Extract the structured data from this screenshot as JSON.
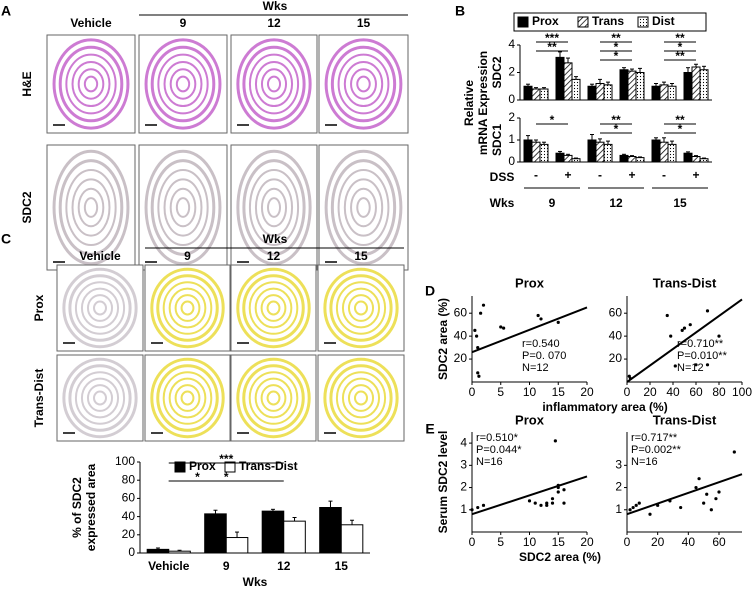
{
  "panels": {
    "A": {
      "label": "A",
      "group_label": "Wks",
      "columns": [
        "Vehicle",
        "9",
        "12",
        "15"
      ],
      "rows": [
        "H&E",
        "SDC2"
      ]
    },
    "B": {
      "label": "B"
    },
    "C": {
      "label": "C",
      "group_label": "Wks",
      "columns": [
        "Vehicle",
        "9",
        "12",
        "15"
      ],
      "rows": [
        "Prox",
        "Trans-Dist"
      ]
    },
    "D": {
      "label": "D"
    },
    "E": {
      "label": "E"
    }
  },
  "chart_data": [
    {
      "type": "bar",
      "title": "SDC2",
      "ylabel": [
        "Relative",
        "mRNA Expression"
      ],
      "series": [
        {
          "name": "Prox",
          "color": "#000000",
          "values": [
            1.0,
            3.1,
            1.0,
            2.2,
            1.0,
            2.0
          ],
          "errors": [
            0.15,
            0.4,
            0.15,
            0.15,
            0.2,
            0.35
          ]
        },
        {
          "name": "Trans",
          "color": "#000000",
          "pattern": "hatch",
          "values": [
            0.8,
            2.7,
            1.2,
            2.1,
            1.1,
            2.4
          ],
          "errors": [
            0.1,
            0.35,
            0.3,
            0.15,
            0.2,
            0.2
          ]
        },
        {
          "name": "Dist",
          "color": "#000000",
          "pattern": "dots",
          "values": [
            0.8,
            1.5,
            1.1,
            2.0,
            1.0,
            2.2
          ],
          "errors": [
            0.1,
            0.2,
            0.2,
            0.3,
            0.2,
            0.25
          ]
        }
      ],
      "ylim": [
        0,
        4
      ],
      "yticks": [
        0,
        2,
        4
      ],
      "legend": "top",
      "annotations": [
        "***",
        "**",
        "**",
        "*",
        "*",
        "**",
        "*",
        "**"
      ]
    },
    {
      "type": "bar",
      "title": "SDC1",
      "categories": [
        "-",
        "+",
        "-",
        "+",
        "-",
        "+"
      ],
      "category_row_label": "DSS",
      "groups": [
        "9",
        "12",
        "15"
      ],
      "group_row_label": "Wks",
      "series": [
        {
          "name": "Prox",
          "color": "#000000",
          "values": [
            1.0,
            0.4,
            1.0,
            0.3,
            1.0,
            0.4
          ],
          "errors": [
            0.2,
            0.08,
            0.25,
            0.05,
            0.1,
            0.06
          ]
        },
        {
          "name": "Trans",
          "color": "#000000",
          "pattern": "hatch",
          "values": [
            0.9,
            0.3,
            0.9,
            0.25,
            0.9,
            0.25
          ],
          "errors": [
            0.1,
            0.05,
            0.15,
            0.04,
            0.2,
            0.04
          ]
        },
        {
          "name": "Dist",
          "color": "#000000",
          "pattern": "dots",
          "values": [
            0.8,
            0.15,
            0.8,
            0.2,
            0.8,
            0.15
          ],
          "errors": [
            0.1,
            0.03,
            0.15,
            0.03,
            0.15,
            0.03
          ]
        }
      ],
      "ylim": [
        0,
        2
      ],
      "yticks": [
        0,
        1,
        2
      ],
      "annotations": [
        "*",
        "**",
        "*",
        "**",
        "*"
      ]
    },
    {
      "type": "bar",
      "ylabel": [
        "% of SDC2",
        "expressed area"
      ],
      "xlabel": "Wks",
      "categories": [
        "Vehicle",
        "9",
        "12",
        "15"
      ],
      "series": [
        {
          "name": "Prox",
          "color": "#000000",
          "values": [
            4,
            43,
            46,
            50
          ],
          "errors": [
            1.5,
            4,
            2,
            7
          ]
        },
        {
          "name": "Trans-Dist",
          "color": "#ffffff",
          "values": [
            2,
            17,
            35,
            31
          ],
          "errors": [
            1,
            6,
            4,
            5
          ]
        }
      ],
      "ylim": [
        0,
        100
      ],
      "yticks": [
        0,
        20,
        40,
        60,
        80,
        100
      ],
      "legend": "top",
      "annotations": [
        "*",
        "***",
        "*"
      ]
    },
    {
      "type": "scatter",
      "title": "Prox",
      "ylabel": "SDC2 area (%)",
      "xlabel": "inflammatory area (%)",
      "x": [
        0.5,
        0.8,
        1,
        1.2,
        1.5,
        1,
        5,
        5.5,
        11.5,
        12,
        15,
        2
      ],
      "y": [
        45,
        40,
        8,
        5,
        60,
        30,
        48,
        47,
        58,
        55,
        52,
        67
      ],
      "trend_x": [
        0,
        20
      ],
      "trend_y": [
        26,
        65
      ],
      "xlim": [
        0,
        20
      ],
      "xticks": [
        0,
        5,
        10,
        15,
        20
      ],
      "ylim": [
        0,
        75
      ],
      "yticks": [
        20,
        40,
        60
      ],
      "stats": [
        "r=0.540",
        "P=0. 070",
        "N=12"
      ]
    },
    {
      "type": "scatter",
      "title": "Trans-Dist",
      "x": [
        2,
        3,
        35,
        38,
        48,
        50,
        55,
        60,
        70,
        80,
        70,
        42
      ],
      "y": [
        5,
        3,
        58,
        40,
        45,
        47,
        50,
        15,
        62,
        40,
        15,
        14
      ],
      "trend_x": [
        0,
        100
      ],
      "trend_y": [
        0,
        72
      ],
      "xlim": [
        0,
        100
      ],
      "xticks": [
        0,
        20,
        40,
        60,
        80,
        100
      ],
      "ylim": [
        0,
        75
      ],
      "yticks": [
        20,
        40,
        60
      ],
      "stats": [
        "r=0.710**",
        "P=0.010**",
        "N=12"
      ]
    },
    {
      "type": "scatter",
      "title": "Prox",
      "ylabel": "Serum SDC2 level",
      "xlabel": "SDC2 area (%)",
      "x": [
        0,
        1,
        2,
        10,
        11,
        12,
        13,
        14,
        14.5,
        15,
        15,
        16,
        14,
        13,
        15,
        16
      ],
      "y": [
        1.0,
        1.1,
        1.2,
        1.4,
        1.3,
        1.2,
        1.3,
        1.5,
        4.1,
        2.0,
        2.1,
        1.9,
        1.3,
        1.2,
        1.8,
        1.3
      ],
      "trend_x": [
        0,
        20
      ],
      "trend_y": [
        0.8,
        2.5
      ],
      "xlim": [
        0,
        20
      ],
      "xticks": [
        0,
        5,
        10,
        15,
        20
      ],
      "ylim": [
        0,
        4.5
      ],
      "yticks": [
        1,
        2,
        3,
        4
      ],
      "stats": [
        "r=0.510*",
        "P=0.044*",
        "N=16"
      ]
    },
    {
      "type": "scatter",
      "title": "Trans-Dist",
      "x": [
        2,
        4,
        6,
        8,
        15,
        20,
        28,
        35,
        45,
        47,
        50,
        52,
        55,
        58,
        60,
        70
      ],
      "y": [
        1.0,
        1.1,
        1.2,
        1.3,
        0.8,
        1.2,
        1.4,
        1.1,
        2.0,
        2.4,
        1.3,
        1.7,
        1.0,
        1.5,
        1.8,
        3.6
      ],
      "trend_x": [
        0,
        75
      ],
      "trend_y": [
        0.8,
        2.6
      ],
      "xlim": [
        0,
        75
      ],
      "xticks": [
        0,
        20,
        40,
        60
      ],
      "ylim": [
        0,
        4.5
      ],
      "yticks": [
        1,
        2,
        3
      ],
      "stats": [
        "r=0.717**",
        "P=0.002**",
        "N=16"
      ]
    }
  ]
}
